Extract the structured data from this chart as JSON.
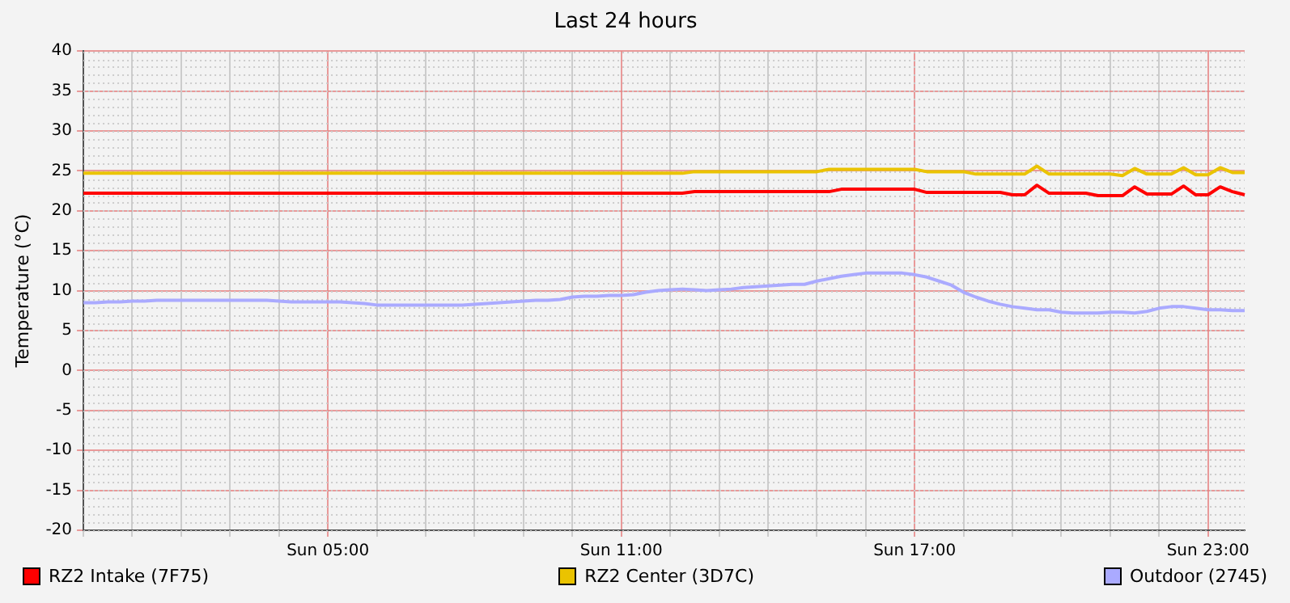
{
  "chart_data": {
    "type": "line",
    "title": "Last 24 hours",
    "ylabel": "Temperature (°C)",
    "categories": [
      null,
      null,
      null,
      null,
      null,
      null,
      null,
      null,
      null,
      null,
      null,
      null,
      null,
      null,
      null,
      null,
      null,
      null,
      null,
      null,
      "Sun 05:00",
      null,
      null,
      null,
      null,
      null,
      null,
      null,
      null,
      null,
      null,
      null,
      null,
      null,
      null,
      null,
      null,
      null,
      null,
      null,
      null,
      null,
      null,
      null,
      "Sun 11:00",
      null,
      null,
      null,
      null,
      null,
      null,
      null,
      null,
      null,
      null,
      null,
      null,
      null,
      null,
      null,
      null,
      null,
      null,
      null,
      null,
      null,
      null,
      null,
      "Sun 17:00",
      null,
      null,
      null,
      null,
      null,
      null,
      null,
      null,
      null,
      null,
      null,
      null,
      null,
      null,
      null,
      null,
      null,
      null,
      null,
      null,
      null,
      null,
      null,
      "Sun 23:00",
      null,
      null,
      null
    ],
    "ylim": [
      -20,
      40
    ],
    "yticks": [
      -20,
      -15,
      -10,
      -5,
      0,
      5,
      10,
      15,
      20,
      25,
      30,
      35,
      40
    ],
    "grid": true,
    "legend": "bottom",
    "marker": "none",
    "line_style": "solid",
    "series": [
      {
        "name": "RZ2 Intake (7F75)",
        "color": "#ff0000",
        "values": [
          22.2,
          22.2,
          22.2,
          22.2,
          22.2,
          22.2,
          22.2,
          22.2,
          22.2,
          22.2,
          22.2,
          22.2,
          22.2,
          22.2,
          22.2,
          22.2,
          22.2,
          22.2,
          22.2,
          22.2,
          22.2,
          22.2,
          22.2,
          22.2,
          22.2,
          22.2,
          22.2,
          22.2,
          22.2,
          22.2,
          22.2,
          22.2,
          22.2,
          22.2,
          22.2,
          22.2,
          22.2,
          22.2,
          22.2,
          22.2,
          22.2,
          22.2,
          22.2,
          22.2,
          22.2,
          22.2,
          22.2,
          22.2,
          22.2,
          22.2,
          22.4,
          22.4,
          22.4,
          22.4,
          22.4,
          22.4,
          22.4,
          22.4,
          22.4,
          22.4,
          22.4,
          22.4,
          22.7,
          22.7,
          22.7,
          22.7,
          22.7,
          22.7,
          22.7,
          22.3,
          22.3,
          22.3,
          22.3,
          22.3,
          22.3,
          22.3,
          22.0,
          22.0,
          23.2,
          22.2,
          22.2,
          22.2,
          22.2,
          21.9,
          21.9,
          21.9,
          23.0,
          22.1,
          22.1,
          22.1,
          23.1,
          22.0,
          22.0,
          23.0,
          22.4,
          22.0
        ]
      },
      {
        "name": "RZ2 Center (3D7C)",
        "color": "#eac300",
        "values": [
          24.7,
          24.7,
          24.7,
          24.7,
          24.7,
          24.7,
          24.7,
          24.7,
          24.7,
          24.7,
          24.7,
          24.7,
          24.7,
          24.7,
          24.7,
          24.7,
          24.7,
          24.7,
          24.7,
          24.7,
          24.7,
          24.7,
          24.7,
          24.7,
          24.7,
          24.7,
          24.7,
          24.7,
          24.7,
          24.7,
          24.7,
          24.7,
          24.7,
          24.7,
          24.7,
          24.7,
          24.7,
          24.7,
          24.7,
          24.7,
          24.7,
          24.7,
          24.7,
          24.7,
          24.7,
          24.7,
          24.7,
          24.7,
          24.7,
          24.7,
          24.9,
          24.9,
          24.9,
          24.9,
          24.9,
          24.9,
          24.9,
          24.9,
          24.9,
          24.9,
          24.9,
          25.2,
          25.2,
          25.2,
          25.2,
          25.2,
          25.2,
          25.2,
          25.2,
          24.9,
          24.9,
          24.9,
          24.9,
          24.6,
          24.6,
          24.6,
          24.6,
          24.6,
          25.6,
          24.6,
          24.6,
          24.6,
          24.6,
          24.6,
          24.6,
          24.4,
          25.3,
          24.6,
          24.6,
          24.6,
          25.4,
          24.5,
          24.5,
          25.4,
          24.8,
          24.8
        ]
      },
      {
        "name": "Outdoor (2745)",
        "color": "#aaaaff",
        "values": [
          8.5,
          8.5,
          8.6,
          8.6,
          8.7,
          8.7,
          8.8,
          8.8,
          8.8,
          8.8,
          8.8,
          8.8,
          8.8,
          8.8,
          8.8,
          8.8,
          8.7,
          8.6,
          8.6,
          8.6,
          8.6,
          8.6,
          8.5,
          8.4,
          8.2,
          8.2,
          8.2,
          8.2,
          8.2,
          8.2,
          8.2,
          8.2,
          8.3,
          8.4,
          8.5,
          8.6,
          8.7,
          8.8,
          8.8,
          8.9,
          9.2,
          9.3,
          9.3,
          9.4,
          9.4,
          9.5,
          9.8,
          10.0,
          10.1,
          10.2,
          10.1,
          10.0,
          10.1,
          10.2,
          10.4,
          10.5,
          10.6,
          10.7,
          10.8,
          10.8,
          11.2,
          11.5,
          11.8,
          12.0,
          12.2,
          12.2,
          12.2,
          12.2,
          12.0,
          11.7,
          11.2,
          10.7,
          9.8,
          9.2,
          8.7,
          8.3,
          8.0,
          7.8,
          7.6,
          7.6,
          7.3,
          7.2,
          7.2,
          7.2,
          7.3,
          7.3,
          7.2,
          7.4,
          7.8,
          8.0,
          8.0,
          7.8,
          7.6,
          7.6,
          7.5,
          7.5
        ]
      }
    ]
  }
}
